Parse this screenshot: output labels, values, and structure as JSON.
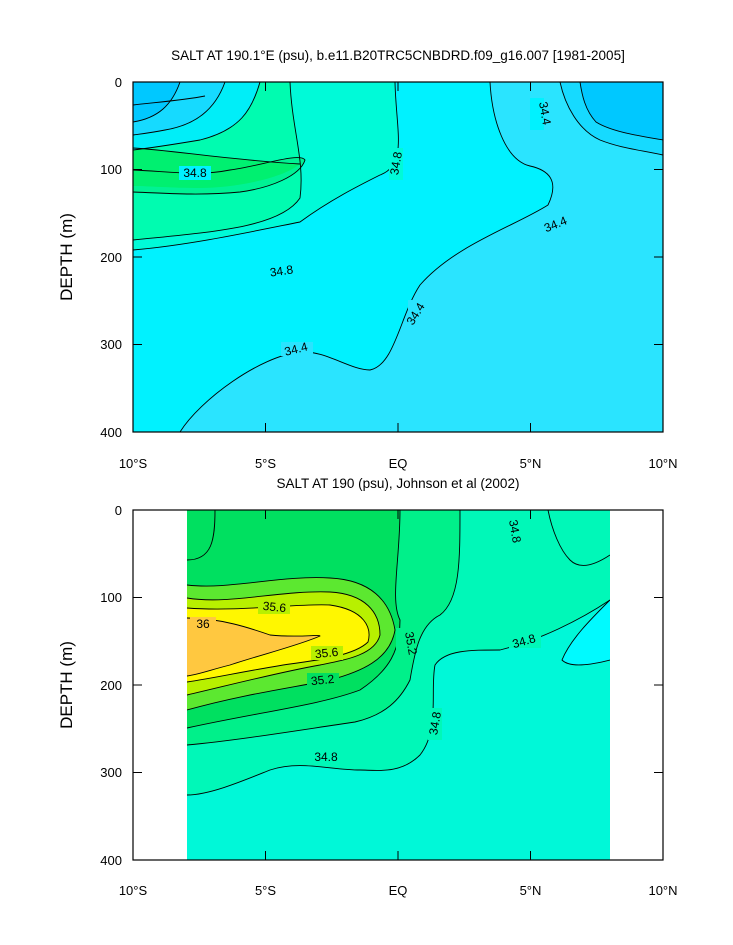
{
  "chart_data": [
    {
      "type": "contour",
      "title": "SALT AT 190.1°E (psu), b.e11.B20TRC5CNBDRD.f09_g16.007 [1981-2005]",
      "ylabel": "DEPTH (m)",
      "xlabel": "",
      "x_ticks": [
        "10°S",
        "5°S",
        "EQ",
        "5°N",
        "10°N"
      ],
      "y_ticks": [
        "0",
        "100",
        "200",
        "300",
        "400"
      ],
      "xlim": [
        -10,
        10
      ],
      "ylim": [
        400,
        0
      ],
      "y_axis_inverted": true,
      "contour_labels": [
        "34.8",
        "34.8",
        "34.4",
        "34.4",
        "34.8",
        "34.4",
        "34.4"
      ],
      "fill_colors": {
        "33.8": "#00C8FF",
        "34.0": "#16DAFF",
        "34.2": "#2AE4FF",
        "34.4": "#00F2FF",
        "34.6": "#00FAD8",
        "34.8": "#00FCB0",
        "35.0": "#00F294"
      }
    },
    {
      "type": "contour",
      "title": "SALT AT 190 (psu), Johnson et al (2002)",
      "ylabel": "DEPTH (m)",
      "xlabel": "",
      "x_ticks": [
        "10°S",
        "5°S",
        "EQ",
        "5°N",
        "10°N"
      ],
      "y_ticks": [
        "0",
        "100",
        "200",
        "300",
        "400"
      ],
      "xlim": [
        -10,
        10
      ],
      "ylim": [
        400,
        0
      ],
      "data_x_range": [
        -8,
        8
      ],
      "y_axis_inverted": true,
      "contour_labels": [
        "34.8",
        "35.2",
        "35.6",
        "36",
        "35.6",
        "35.2",
        "34.8",
        "34.8",
        "34.8"
      ],
      "fill_colors": {
        "34.4": "#00FAFF",
        "34.6": "#00F8D8",
        "34.8": "#00F8B8",
        "35.0": "#00F08A",
        "35.2": "#00E060",
        "35.4": "#5CE830",
        "35.6": "#B8F000",
        "35.8": "#FFF700",
        "36.0": "#FFC840"
      }
    }
  ]
}
